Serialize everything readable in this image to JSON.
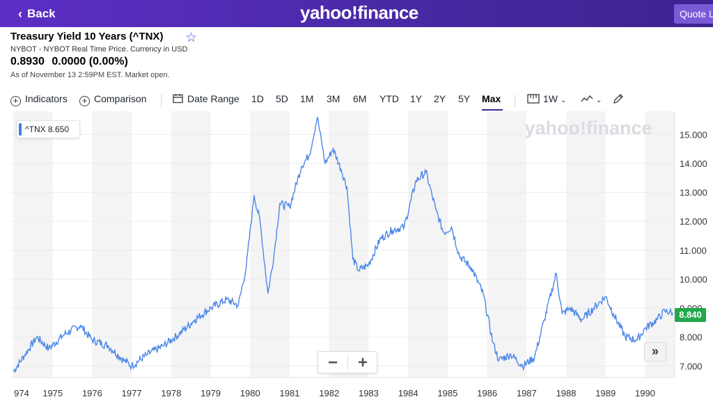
{
  "header": {
    "back_label": "Back",
    "brand": "yahoo!finance",
    "quote_button": "Quote L"
  },
  "quote": {
    "title": "Treasury Yield 10 Years (^TNX)",
    "subtitle": "NYBOT - NYBOT Real Time Price. Currency in USD",
    "price": "0.8930",
    "change": "0.0000 (0.00%)",
    "as_of": "As of November 13 2:59PM EST. Market open."
  },
  "toolbar": {
    "indicators": "Indicators",
    "comparison": "Comparison",
    "date_range": "Date Range",
    "ranges": [
      "1D",
      "5D",
      "1M",
      "3M",
      "6M",
      "YTD",
      "1Y",
      "2Y",
      "5Y",
      "Max"
    ],
    "active_range": "Max",
    "interval": "1W"
  },
  "chart_overlay": {
    "watermark": "yahoo!finance",
    "legend": "^TNX  8.650",
    "last_price_tag": "8.840",
    "zoom_out": "−",
    "zoom_in": "+",
    "jump": "»"
  },
  "colors": {
    "line": "#4a86e8",
    "last_tag": "#21a84a",
    "header": "#4a2aa8",
    "active_underline": "#3c238f"
  },
  "chart_data": {
    "type": "line",
    "title": "",
    "series": [
      {
        "name": "^TNX",
        "x": [
          1974.0,
          1974.3,
          1974.6,
          1974.9,
          1975.3,
          1975.7,
          1976.0,
          1976.4,
          1976.8,
          1977.0,
          1977.4,
          1977.8,
          1978.2,
          1978.6,
          1979.0,
          1979.4,
          1979.7,
          1979.9,
          1980.1,
          1980.25,
          1980.45,
          1980.6,
          1980.75,
          1981.0,
          1981.3,
          1981.5,
          1981.7,
          1981.9,
          1982.1,
          1982.3,
          1982.45,
          1982.6,
          1982.75,
          1983.0,
          1983.3,
          1983.6,
          1983.9,
          1984.2,
          1984.45,
          1984.7,
          1984.9,
          1985.1,
          1985.3,
          1985.6,
          1985.9,
          1986.15,
          1986.3,
          1986.6,
          1986.9,
          1987.2,
          1987.45,
          1987.75,
          1987.9,
          1988.1,
          1988.4,
          1988.7,
          1989.0,
          1989.2,
          1989.5,
          1989.8,
          1990.0,
          1990.3,
          1990.5,
          1990.7
        ],
        "values": [
          6.8,
          7.4,
          8.0,
          7.6,
          8.1,
          8.4,
          7.9,
          7.7,
          7.2,
          7.0,
          7.4,
          7.7,
          8.1,
          8.6,
          9.0,
          9.3,
          9.1,
          10.4,
          12.9,
          12.0,
          9.5,
          10.8,
          12.6,
          12.5,
          13.9,
          14.3,
          15.6,
          14.0,
          14.5,
          13.8,
          13.2,
          10.7,
          10.3,
          10.5,
          11.4,
          11.7,
          11.8,
          13.4,
          13.7,
          12.4,
          11.6,
          11.8,
          10.8,
          10.4,
          9.5,
          7.8,
          7.2,
          7.4,
          7.0,
          7.3,
          8.6,
          10.2,
          8.8,
          9.0,
          8.6,
          9.0,
          9.4,
          8.8,
          8.0,
          7.9,
          8.3,
          8.6,
          8.9,
          8.84
        ]
      }
    ],
    "xlabel": "",
    "ylabel": "",
    "x_ticks": [
      "974",
      "1975",
      "1976",
      "1977",
      "1978",
      "1979",
      "1980",
      "1981",
      "1982",
      "1983",
      "1984",
      "1985",
      "1986",
      "1987",
      "1988",
      "1989",
      "1990"
    ],
    "y_ticks": [
      "7.000",
      "8.000",
      "9.000",
      "10.000",
      "11.000",
      "12.000",
      "13.000",
      "14.000",
      "15.000"
    ],
    "ylim": [
      6.6,
      15.8
    ],
    "xlim": [
      1973.93,
      1990.75
    ],
    "grid": true,
    "legend": "top-left"
  }
}
